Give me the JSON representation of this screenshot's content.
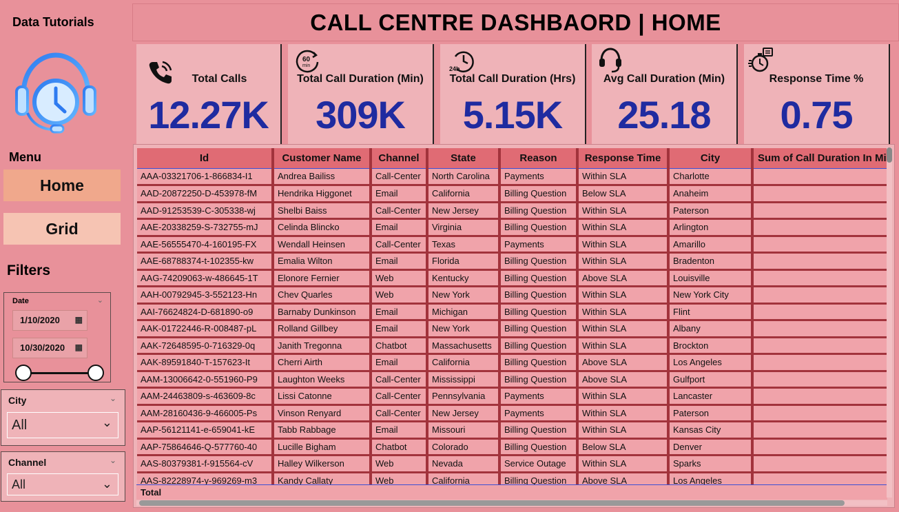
{
  "brand": "Data Tutorials",
  "page_title": "CALL CENTRE DASHBAORD | HOME",
  "sidebar": {
    "menu_label": "Menu",
    "nav": [
      {
        "label": "Home"
      },
      {
        "label": "Grid"
      }
    ],
    "filters_label": "Filters",
    "date_slicer": {
      "title": "Date",
      "from": "1/10/2020",
      "to": "10/30/2020"
    },
    "city_slicer": {
      "title": "City",
      "value": "All"
    },
    "channel_slicer": {
      "title": "Channel",
      "value": "All"
    }
  },
  "kpis": [
    {
      "title": "Total Calls",
      "value": "12.27K",
      "icon": "phone-icon"
    },
    {
      "title": "Total Call Duration (Min)",
      "value": "309K",
      "icon": "60-min-timer-icon"
    },
    {
      "title": "Total Call Duration (Hrs)",
      "value": "5.15K",
      "icon": "24h-clock-icon"
    },
    {
      "title": "Avg Call Duration (Min)",
      "value": "25.18",
      "icon": "headset-icon"
    },
    {
      "title": "Response Time %",
      "value": "0.75",
      "icon": "stopwatch-icon"
    }
  ],
  "table": {
    "columns": [
      "Id",
      "Customer Name",
      "Channel",
      "State",
      "Reason",
      "Response Time",
      "City",
      "Sum of Call Duration In Minutes"
    ],
    "rows": [
      [
        "AAA-03321706-1-866834-I1",
        "Andrea Bailiss",
        "Call-Center",
        "North Carolina",
        "Payments",
        "Within SLA",
        "Charlotte",
        ""
      ],
      [
        "AAD-20872250-D-453978-fM",
        "Hendrika Higgonet",
        "Email",
        "California",
        "Billing Question",
        "Below SLA",
        "Anaheim",
        ""
      ],
      [
        "AAD-91253539-C-305338-wj",
        "Shelbi Baiss",
        "Call-Center",
        "New Jersey",
        "Billing Question",
        "Within SLA",
        "Paterson",
        ""
      ],
      [
        "AAE-20338259-S-732755-mJ",
        "Celinda Blincko",
        "Email",
        "Virginia",
        "Billing Question",
        "Within SLA",
        "Arlington",
        ""
      ],
      [
        "AAE-56555470-4-160195-FX",
        "Wendall Heinsen",
        "Call-Center",
        "Texas",
        "Payments",
        "Within SLA",
        "Amarillo",
        ""
      ],
      [
        "AAE-68788374-t-102355-kw",
        "Emalia Wilton",
        "Email",
        "Florida",
        "Billing Question",
        "Within SLA",
        "Bradenton",
        ""
      ],
      [
        "AAG-74209063-w-486645-1T",
        "Elonore Fernier",
        "Web",
        "Kentucky",
        "Billing Question",
        "Above SLA",
        "Louisville",
        ""
      ],
      [
        "AAH-00792945-3-552123-Hn",
        "Chev Quarles",
        "Web",
        "New York",
        "Billing Question",
        "Within SLA",
        "New York City",
        ""
      ],
      [
        "AAI-76624824-D-681890-o9",
        "Barnaby Dunkinson",
        "Email",
        "Michigan",
        "Billing Question",
        "Within SLA",
        "Flint",
        ""
      ],
      [
        "AAK-01722446-R-008487-pL",
        "Rolland Gillbey",
        "Email",
        "New York",
        "Billing Question",
        "Within SLA",
        "Albany",
        ""
      ],
      [
        "AAK-72648595-0-716329-0q",
        "Janith Tregonna",
        "Chatbot",
        "Massachusetts",
        "Billing Question",
        "Within SLA",
        "Brockton",
        ""
      ],
      [
        "AAK-89591840-T-157623-It",
        "Cherri Airth",
        "Email",
        "California",
        "Billing Question",
        "Above SLA",
        "Los Angeles",
        ""
      ],
      [
        "AAM-13006642-0-551960-P9",
        "Laughton Weeks",
        "Call-Center",
        "Mississippi",
        "Billing Question",
        "Above SLA",
        "Gulfport",
        ""
      ],
      [
        "AAM-24463809-s-463609-8c",
        "Lissi Catonne",
        "Call-Center",
        "Pennsylvania",
        "Payments",
        "Within SLA",
        "Lancaster",
        ""
      ],
      [
        "AAM-28160436-9-466005-Ps",
        "Vinson Renyard",
        "Call-Center",
        "New Jersey",
        "Payments",
        "Within SLA",
        "Paterson",
        ""
      ],
      [
        "AAP-56121141-e-659041-kE",
        "Tabb Rabbage",
        "Email",
        "Missouri",
        "Billing Question",
        "Within SLA",
        "Kansas City",
        ""
      ],
      [
        "AAP-75864646-Q-577760-40",
        "Lucille Bigham",
        "Chatbot",
        "Colorado",
        "Billing Question",
        "Below SLA",
        "Denver",
        ""
      ],
      [
        "AAS-80379381-f-915564-cV",
        "Halley Wilkerson",
        "Web",
        "Nevada",
        "Service Outage",
        "Within SLA",
        "Sparks",
        ""
      ],
      [
        "AAS-82228974-y-969269-m3",
        "Kandy Callaty",
        "Web",
        "California",
        "Billing Question",
        "Above SLA",
        "Los Angeles",
        ""
      ]
    ],
    "total_label": "Total"
  }
}
